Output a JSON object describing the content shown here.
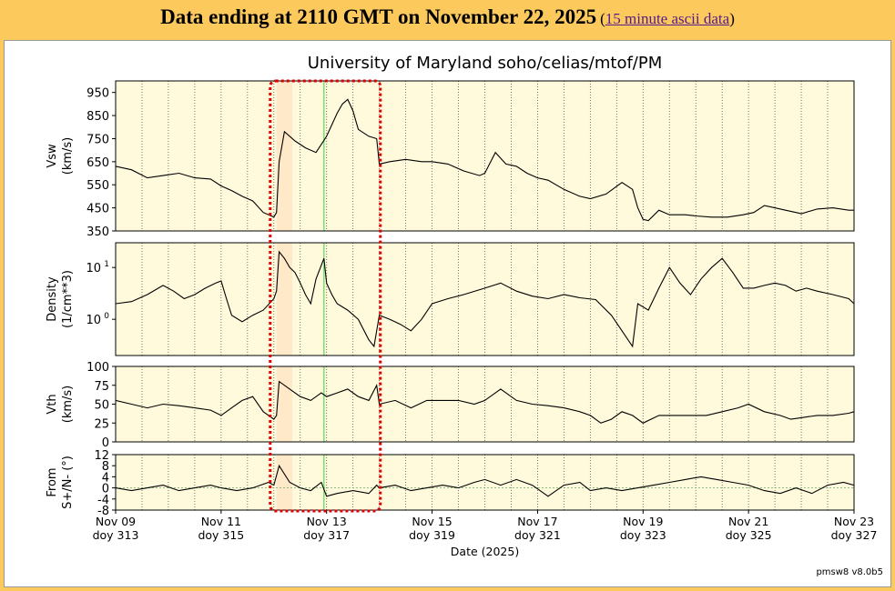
{
  "header": {
    "title": "Data ending at 2110 GMT on November 22, 2025",
    "link_text": "15 minute ascii data"
  },
  "version": "pmsw8 v8.0b5",
  "colors": {
    "plot_bg": "#fffadc",
    "highlight": "#ffe9c8",
    "marker_line": "#55dd55",
    "selection_box": "#dd0000"
  },
  "chart_data": {
    "type": "line",
    "title": "University of Maryland  soho/celias/mtof/PM",
    "xlabel": "Date (2025)",
    "x_ticks": [
      {
        "date": "Nov 09",
        "doy": "doy 313"
      },
      {
        "date": "Nov 11",
        "doy": "doy 315"
      },
      {
        "date": "Nov 13",
        "doy": "doy 317"
      },
      {
        "date": "Nov 15",
        "doy": "doy 319"
      },
      {
        "date": "Nov 17",
        "doy": "doy 321"
      },
      {
        "date": "Nov 19",
        "doy": "doy 323"
      },
      {
        "date": "Nov 21",
        "doy": "doy 325"
      },
      {
        "date": "Nov 23",
        "doy": "doy 327"
      }
    ],
    "xlim_doy": [
      313,
      327
    ],
    "highlight_band_doy": [
      316.05,
      316.35
    ],
    "marker_line_doy": 316.95,
    "selection_box_doy": [
      316.0,
      317.95
    ],
    "grid": "dotted vertical lines every 12 hours",
    "panels": [
      {
        "ylabel": [
          "Vsw",
          "(km/s)"
        ],
        "ylim": [
          350,
          1000
        ],
        "yticks": [
          350,
          450,
          550,
          650,
          750,
          850,
          950
        ],
        "scale": "linear",
        "series": [
          [
            313,
            630
          ],
          [
            313.3,
            615
          ],
          [
            313.6,
            580
          ],
          [
            313.9,
            590
          ],
          [
            314.2,
            600
          ],
          [
            314.5,
            580
          ],
          [
            314.8,
            575
          ],
          [
            315.0,
            545
          ],
          [
            315.2,
            525
          ],
          [
            315.4,
            500
          ],
          [
            315.6,
            480
          ],
          [
            315.8,
            430
          ],
          [
            316.0,
            410
          ],
          [
            316.05,
            430
          ],
          [
            316.1,
            650
          ],
          [
            316.2,
            780
          ],
          [
            316.4,
            740
          ],
          [
            316.6,
            710
          ],
          [
            316.8,
            690
          ],
          [
            317.0,
            760
          ],
          [
            317.2,
            860
          ],
          [
            317.3,
            900
          ],
          [
            317.4,
            920
          ],
          [
            317.5,
            870
          ],
          [
            317.6,
            790
          ],
          [
            317.8,
            760
          ],
          [
            317.95,
            750
          ],
          [
            318.0,
            640
          ],
          [
            318.2,
            650
          ],
          [
            318.5,
            660
          ],
          [
            318.8,
            650
          ],
          [
            319.0,
            650
          ],
          [
            319.3,
            640
          ],
          [
            319.6,
            610
          ],
          [
            319.9,
            590
          ],
          [
            320.0,
            600
          ],
          [
            320.2,
            690
          ],
          [
            320.4,
            640
          ],
          [
            320.6,
            630
          ],
          [
            320.8,
            600
          ],
          [
            321.0,
            580
          ],
          [
            321.2,
            570
          ],
          [
            321.5,
            530
          ],
          [
            321.8,
            500
          ],
          [
            322.0,
            490
          ],
          [
            322.3,
            510
          ],
          [
            322.6,
            560
          ],
          [
            322.8,
            530
          ],
          [
            322.9,
            450
          ],
          [
            323.0,
            400
          ],
          [
            323.1,
            395
          ],
          [
            323.3,
            440
          ],
          [
            323.5,
            420
          ],
          [
            323.8,
            420
          ],
          [
            324.0,
            415
          ],
          [
            324.3,
            410
          ],
          [
            324.6,
            410
          ],
          [
            324.9,
            420
          ],
          [
            325.1,
            430
          ],
          [
            325.3,
            460
          ],
          [
            325.5,
            450
          ],
          [
            325.7,
            440
          ],
          [
            325.9,
            430
          ],
          [
            326.0,
            425
          ],
          [
            326.3,
            445
          ],
          [
            326.6,
            450
          ],
          [
            326.9,
            440
          ],
          [
            327.0,
            440
          ]
        ]
      },
      {
        "ylabel": [
          "Density",
          "(1/cm**3)"
        ],
        "ylim": [
          0.2,
          30
        ],
        "yticks": [
          1,
          10
        ],
        "yticklabels": [
          "10^0",
          "10^1"
        ],
        "scale": "log",
        "series": [
          [
            313,
            2.0
          ],
          [
            313.3,
            2.2
          ],
          [
            313.6,
            3.0
          ],
          [
            313.9,
            4.5
          ],
          [
            314.1,
            3.5
          ],
          [
            314.3,
            2.5
          ],
          [
            314.5,
            3.0
          ],
          [
            314.7,
            4.0
          ],
          [
            314.9,
            5.0
          ],
          [
            315.0,
            5.5
          ],
          [
            315.1,
            2.5
          ],
          [
            315.2,
            1.2
          ],
          [
            315.4,
            0.9
          ],
          [
            315.6,
            1.2
          ],
          [
            315.8,
            1.5
          ],
          [
            316.0,
            2.5
          ],
          [
            316.05,
            3.5
          ],
          [
            316.1,
            20
          ],
          [
            316.2,
            15
          ],
          [
            316.3,
            10
          ],
          [
            316.4,
            8
          ],
          [
            316.5,
            5
          ],
          [
            316.6,
            3
          ],
          [
            316.7,
            2
          ],
          [
            316.8,
            6
          ],
          [
            316.95,
            15
          ],
          [
            317.0,
            5
          ],
          [
            317.1,
            3
          ],
          [
            317.2,
            2
          ],
          [
            317.4,
            1.5
          ],
          [
            317.6,
            1.0
          ],
          [
            317.8,
            0.4
          ],
          [
            317.9,
            0.3
          ],
          [
            318.0,
            1.2
          ],
          [
            318.2,
            1.0
          ],
          [
            318.4,
            0.8
          ],
          [
            318.6,
            0.6
          ],
          [
            318.8,
            1.0
          ],
          [
            319.0,
            2.0
          ],
          [
            319.3,
            2.5
          ],
          [
            319.6,
            3.0
          ],
          [
            320.0,
            4.0
          ],
          [
            320.3,
            5.0
          ],
          [
            320.6,
            3.5
          ],
          [
            320.9,
            2.8
          ],
          [
            321.2,
            2.5
          ],
          [
            321.5,
            3.0
          ],
          [
            321.8,
            2.6
          ],
          [
            322.1,
            2.4
          ],
          [
            322.4,
            1.2
          ],
          [
            322.6,
            0.6
          ],
          [
            322.8,
            0.3
          ],
          [
            322.9,
            2.0
          ],
          [
            323.1,
            1.5
          ],
          [
            323.3,
            4.0
          ],
          [
            323.5,
            10
          ],
          [
            323.7,
            5
          ],
          [
            323.9,
            3
          ],
          [
            324.1,
            6
          ],
          [
            324.3,
            10
          ],
          [
            324.5,
            15
          ],
          [
            324.7,
            8
          ],
          [
            324.9,
            4
          ],
          [
            325.1,
            4
          ],
          [
            325.3,
            4.5
          ],
          [
            325.5,
            5
          ],
          [
            325.7,
            4.5
          ],
          [
            325.9,
            3.5
          ],
          [
            326.1,
            4
          ],
          [
            326.3,
            3.5
          ],
          [
            326.6,
            3
          ],
          [
            326.9,
            2.5
          ],
          [
            327.0,
            2.0
          ]
        ]
      },
      {
        "ylabel": [
          "Vth",
          "(km/s)"
        ],
        "ylim": [
          0,
          100
        ],
        "yticks": [
          0,
          25,
          50,
          75,
          100
        ],
        "scale": "linear",
        "series": [
          [
            313,
            55
          ],
          [
            313.3,
            50
          ],
          [
            313.6,
            45
          ],
          [
            313.9,
            50
          ],
          [
            314.2,
            48
          ],
          [
            314.5,
            45
          ],
          [
            314.8,
            42
          ],
          [
            315.0,
            35
          ],
          [
            315.2,
            45
          ],
          [
            315.4,
            55
          ],
          [
            315.6,
            60
          ],
          [
            315.8,
            40
          ],
          [
            316.0,
            30
          ],
          [
            316.05,
            35
          ],
          [
            316.1,
            80
          ],
          [
            316.3,
            70
          ],
          [
            316.5,
            60
          ],
          [
            316.7,
            55
          ],
          [
            316.9,
            65
          ],
          [
            317.0,
            60
          ],
          [
            317.2,
            65
          ],
          [
            317.4,
            70
          ],
          [
            317.6,
            60
          ],
          [
            317.8,
            55
          ],
          [
            317.95,
            75
          ],
          [
            318.0,
            50
          ],
          [
            318.3,
            55
          ],
          [
            318.6,
            45
          ],
          [
            318.9,
            55
          ],
          [
            319.2,
            55
          ],
          [
            319.5,
            55
          ],
          [
            319.8,
            50
          ],
          [
            320.0,
            55
          ],
          [
            320.3,
            70
          ],
          [
            320.6,
            55
          ],
          [
            320.9,
            50
          ],
          [
            321.2,
            48
          ],
          [
            321.5,
            45
          ],
          [
            321.8,
            40
          ],
          [
            322.0,
            35
          ],
          [
            322.2,
            25
          ],
          [
            322.4,
            30
          ],
          [
            322.6,
            40
          ],
          [
            322.8,
            35
          ],
          [
            323.0,
            25
          ],
          [
            323.3,
            35
          ],
          [
            323.6,
            35
          ],
          [
            323.9,
            35
          ],
          [
            324.2,
            35
          ],
          [
            324.5,
            40
          ],
          [
            324.8,
            45
          ],
          [
            325.0,
            50
          ],
          [
            325.3,
            40
          ],
          [
            325.6,
            35
          ],
          [
            325.8,
            30
          ],
          [
            326.0,
            32
          ],
          [
            326.3,
            35
          ],
          [
            326.6,
            35
          ],
          [
            326.9,
            38
          ],
          [
            327.0,
            40
          ]
        ]
      },
      {
        "ylabel": [
          "From",
          "S+/N- (°)"
        ],
        "ylim": [
          -8,
          12
        ],
        "yticks": [
          -8,
          -4,
          0,
          4,
          8,
          12
        ],
        "scale": "linear",
        "zero_line": true,
        "series": [
          [
            313,
            0
          ],
          [
            313.3,
            -1
          ],
          [
            313.6,
            0
          ],
          [
            313.9,
            1
          ],
          [
            314.2,
            -1
          ],
          [
            314.5,
            0
          ],
          [
            314.8,
            1
          ],
          [
            315.0,
            0
          ],
          [
            315.3,
            -1
          ],
          [
            315.6,
            0
          ],
          [
            315.9,
            2
          ],
          [
            316.0,
            1
          ],
          [
            316.1,
            8
          ],
          [
            316.3,
            2
          ],
          [
            316.5,
            0
          ],
          [
            316.7,
            -1
          ],
          [
            316.9,
            2
          ],
          [
            317.0,
            -3
          ],
          [
            317.2,
            -2
          ],
          [
            317.5,
            -1
          ],
          [
            317.8,
            -2
          ],
          [
            317.95,
            1
          ],
          [
            318.0,
            0
          ],
          [
            318.3,
            1
          ],
          [
            318.6,
            -1
          ],
          [
            318.9,
            0
          ],
          [
            319.2,
            1
          ],
          [
            319.5,
            0
          ],
          [
            319.8,
            2
          ],
          [
            320.0,
            3
          ],
          [
            320.3,
            1
          ],
          [
            320.6,
            3
          ],
          [
            320.9,
            1
          ],
          [
            321.2,
            -3
          ],
          [
            321.5,
            1
          ],
          [
            321.8,
            2
          ],
          [
            322.0,
            -1
          ],
          [
            322.3,
            0
          ],
          [
            322.6,
            -1
          ],
          [
            322.9,
            0
          ],
          [
            323.2,
            1
          ],
          [
            323.5,
            2
          ],
          [
            323.8,
            3
          ],
          [
            324.1,
            4
          ],
          [
            324.4,
            3
          ],
          [
            324.7,
            2
          ],
          [
            325.0,
            1
          ],
          [
            325.3,
            -1
          ],
          [
            325.6,
            -2
          ],
          [
            325.9,
            0
          ],
          [
            326.2,
            -2
          ],
          [
            326.5,
            1
          ],
          [
            326.8,
            2
          ],
          [
            327.0,
            1
          ]
        ]
      }
    ]
  }
}
